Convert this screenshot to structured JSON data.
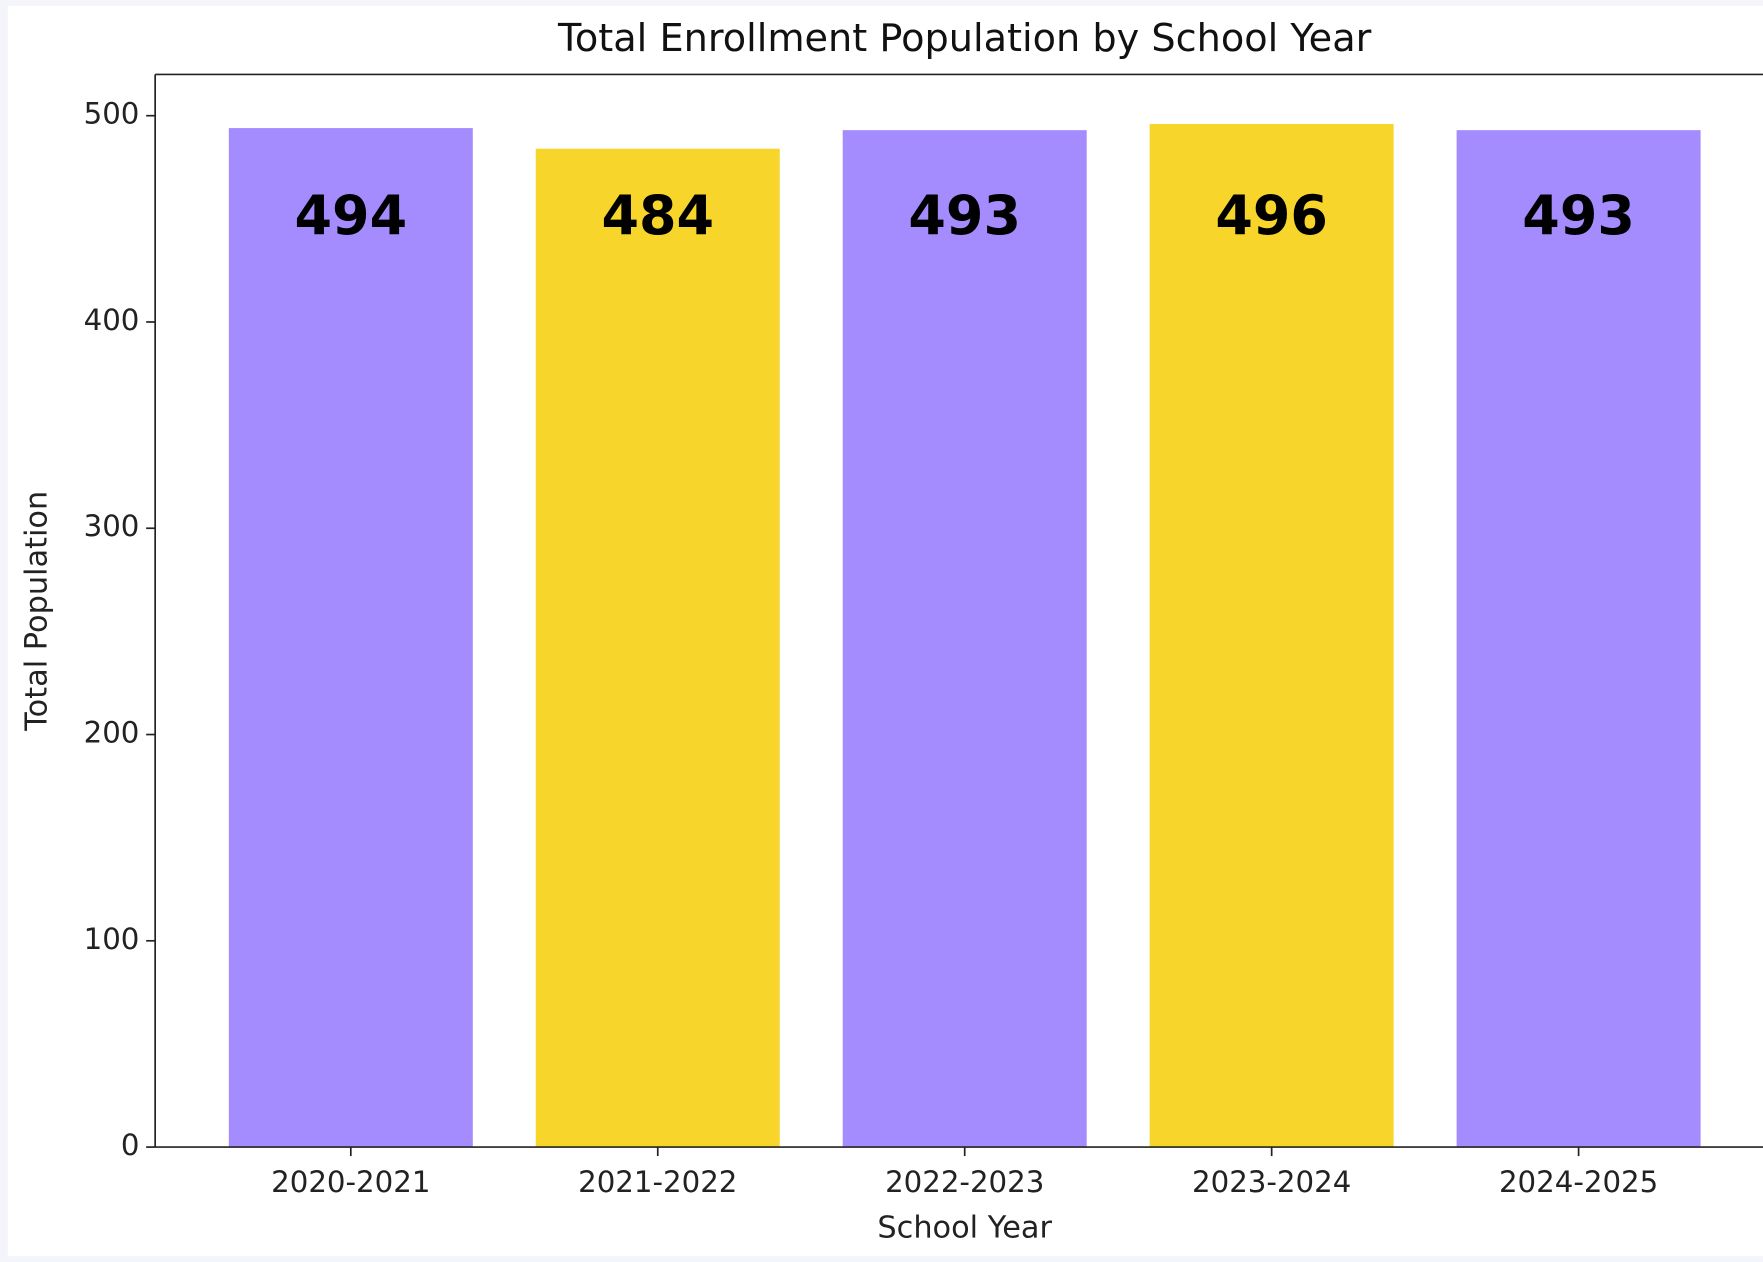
{
  "chart_data": {
    "type": "bar",
    "title": "Total Enrollment Population by School Year",
    "x_label": "School Year",
    "y_label": "Total Population",
    "categories": [
      "2020-2021",
      "2021-2022",
      "2022-2023",
      "2023-2024",
      "2024-2025"
    ],
    "values": [
      494,
      484,
      493,
      496,
      493
    ],
    "colors": [
      "#a48cfe",
      "#f8d52a",
      "#a48cfe",
      "#f8d52a",
      "#a48cfe"
    ],
    "ylim": [
      0,
      520
    ],
    "yticks": [
      0,
      100,
      200,
      300,
      400,
      500
    ],
    "grid": false
  }
}
